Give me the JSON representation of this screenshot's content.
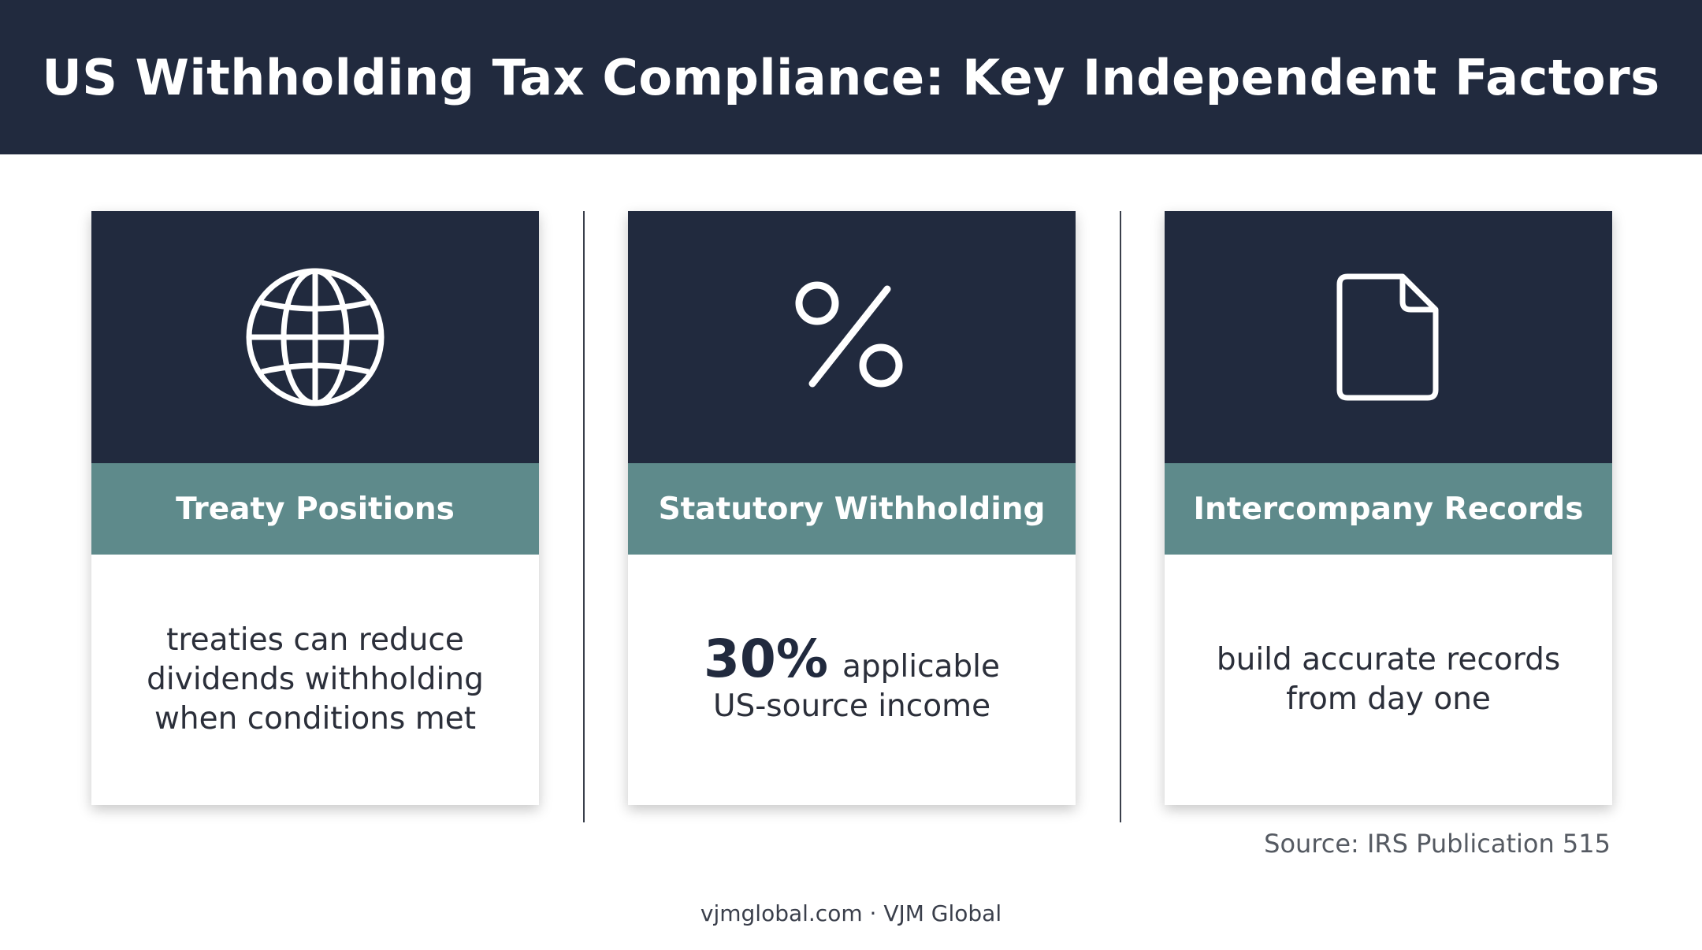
{
  "header": {
    "title": "US Withholding Tax Compliance: Key Independent Factors"
  },
  "cards": [
    {
      "icon": "globe-icon",
      "title": "Treaty Positions",
      "lines": [
        "treaties can reduce",
        "dividends withholding",
        "when conditions met"
      ]
    },
    {
      "icon": "percent-icon",
      "title": "Statutory Withholding",
      "stat": "30%",
      "stat_suffix": "applicable",
      "lines": [
        "US-source income"
      ]
    },
    {
      "icon": "document-icon",
      "title": "Intercompany Records",
      "lines": [
        "build accurate records",
        "from day one"
      ]
    }
  ],
  "source": "Source: IRS Publication 515",
  "footer": "vjmglobal.com · VJM Global",
  "colors": {
    "navy": "#212a3e",
    "teal": "#5e8a8b",
    "white": "#ffffff"
  }
}
